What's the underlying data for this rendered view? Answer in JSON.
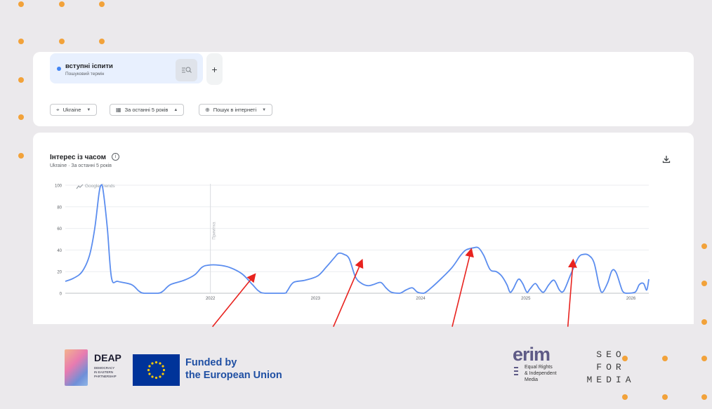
{
  "search_term": {
    "name": "вступні іспити",
    "type": "Пошуковий термін"
  },
  "filters": {
    "region": "Ukraine",
    "period": "За останні 5 років",
    "search_type": "Пошук в інтернеті"
  },
  "chart_header": {
    "title": "Інтерес із часом",
    "subtitle": "Ukraine · За останні 5 років"
  },
  "chart_data": {
    "type": "line",
    "watermark": "Google Trends",
    "note_label": "Примітка",
    "y_ticks": [
      "100",
      "80",
      "60",
      "40",
      "20",
      "0"
    ],
    "ylim": [
      0,
      100
    ],
    "x_ticks": [
      {
        "label": "2022",
        "t": 2022.0
      },
      {
        "label": "2023",
        "t": 2023.0
      },
      {
        "label": "2024",
        "t": 2024.0
      },
      {
        "label": "2025",
        "t": 2025.0
      },
      {
        "label": "2026",
        "t": 2026.0
      }
    ],
    "xlim": [
      2020.62,
      2026.17
    ],
    "note_t": 2022.0,
    "series_color": "#5b8def",
    "series": [
      {
        "points": [
          [
            2020.62,
            11
          ],
          [
            2020.7,
            14
          ],
          [
            2020.78,
            20
          ],
          [
            2020.85,
            35
          ],
          [
            2020.9,
            60
          ],
          [
            2020.94,
            92
          ],
          [
            2020.96,
            100
          ],
          [
            2020.98,
            95
          ],
          [
            2021.02,
            60
          ],
          [
            2021.06,
            14
          ],
          [
            2021.12,
            11
          ],
          [
            2021.25,
            8
          ],
          [
            2021.32,
            2
          ],
          [
            2021.37,
            0
          ],
          [
            2021.5,
            0
          ],
          [
            2021.55,
            2
          ],
          [
            2021.62,
            8
          ],
          [
            2021.75,
            12
          ],
          [
            2021.85,
            17
          ],
          [
            2021.92,
            24
          ],
          [
            2021.98,
            26
          ],
          [
            2022.08,
            26
          ],
          [
            2022.18,
            24
          ],
          [
            2022.3,
            18
          ],
          [
            2022.4,
            8
          ],
          [
            2022.46,
            2
          ],
          [
            2022.52,
            0
          ],
          [
            2022.7,
            0
          ],
          [
            2022.73,
            2
          ],
          [
            2022.79,
            10
          ],
          [
            2022.9,
            12
          ],
          [
            2023.02,
            16
          ],
          [
            2023.1,
            24
          ],
          [
            2023.18,
            33
          ],
          [
            2023.22,
            37
          ],
          [
            2023.27,
            36
          ],
          [
            2023.32,
            32
          ],
          [
            2023.38,
            15
          ],
          [
            2023.44,
            9
          ],
          [
            2023.5,
            7
          ],
          [
            2023.55,
            8
          ],
          [
            2023.62,
            10
          ],
          [
            2023.67,
            5
          ],
          [
            2023.72,
            1
          ],
          [
            2023.8,
            0
          ],
          [
            2023.86,
            3
          ],
          [
            2023.92,
            5
          ],
          [
            2023.97,
            1
          ],
          [
            2024.03,
            0
          ],
          [
            2024.1,
            5
          ],
          [
            2024.2,
            14
          ],
          [
            2024.3,
            24
          ],
          [
            2024.38,
            35
          ],
          [
            2024.43,
            40
          ],
          [
            2024.5,
            42
          ],
          [
            2024.55,
            42
          ],
          [
            2024.6,
            35
          ],
          [
            2024.66,
            22
          ],
          [
            2024.72,
            20
          ],
          [
            2024.77,
            16
          ],
          [
            2024.82,
            8
          ],
          [
            2024.85,
            1
          ],
          [
            2024.88,
            4
          ],
          [
            2024.93,
            13
          ],
          [
            2024.97,
            9
          ],
          [
            2025.01,
            1
          ],
          [
            2025.04,
            4
          ],
          [
            2025.09,
            9
          ],
          [
            2025.13,
            4
          ],
          [
            2025.17,
            1
          ],
          [
            2025.22,
            8
          ],
          [
            2025.27,
            12
          ],
          [
            2025.32,
            3
          ],
          [
            2025.36,
            2
          ],
          [
            2025.43,
            18
          ],
          [
            2025.5,
            33
          ],
          [
            2025.55,
            36
          ],
          [
            2025.6,
            35
          ],
          [
            2025.65,
            28
          ],
          [
            2025.7,
            6
          ],
          [
            2025.73,
            1
          ],
          [
            2025.78,
            10
          ],
          [
            2025.82,
            21
          ],
          [
            2025.86,
            19
          ],
          [
            2025.92,
            2
          ],
          [
            2025.96,
            0
          ],
          [
            2026.04,
            1
          ],
          [
            2026.08,
            8
          ],
          [
            2026.12,
            9
          ],
          [
            2026.15,
            3
          ],
          [
            2026.17,
            13
          ]
        ]
      }
    ],
    "annotations": [
      {
        "type": "arrow",
        "from_t": 2022.02,
        "from_v": -31,
        "to_t": 2022.42,
        "to_v": 17
      },
      {
        "type": "arrow",
        "from_t": 2023.17,
        "from_v": -31,
        "to_t": 2023.44,
        "to_v": 30
      },
      {
        "type": "arrow",
        "from_t": 2024.3,
        "from_v": -31,
        "to_t": 2024.48,
        "to_v": 40
      },
      {
        "type": "arrow",
        "from_t": 2025.4,
        "from_v": -31,
        "to_t": 2025.45,
        "to_v": 30
      }
    ]
  },
  "footer": {
    "deap": {
      "name": "DEAP",
      "subtitle": "DEMOCRACY\nIN EASTERN\nPARTNERSHIP"
    },
    "eu": {
      "line1": "Funded by",
      "line2": "the European Union"
    },
    "erim": {
      "name": "erim",
      "subtitle": "Equal Rights\n& Independent\nMedia"
    },
    "seo": {
      "row1": "SEO",
      "row2": "FOR",
      "row3": "MEDIA"
    }
  }
}
